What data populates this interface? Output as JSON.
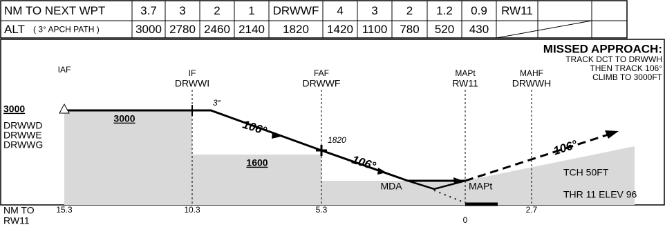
{
  "table": {
    "rows": [
      {
        "label": "NM TO NEXT WPT",
        "cells": [
          "3.7",
          "3",
          "2",
          "1",
          "DRWWF",
          "4",
          "3",
          "2",
          "1.2",
          "0.9",
          "RW11"
        ]
      },
      {
        "label": "ALT",
        "note": "( 3° APCH PATH )",
        "cells": [
          "3000",
          "2780",
          "2460",
          "2140",
          "1820",
          "1420",
          "1100",
          "780",
          "520",
          "430"
        ]
      }
    ]
  },
  "missed_approach": {
    "title": "MISSED APPROACH:",
    "lines": [
      "TRACK DCT TO DRWWH",
      "THEN TRACK 106°",
      "CLIMB TO 3000FT"
    ]
  },
  "fixes": [
    {
      "role": "IAF"
    },
    {
      "role": "IF",
      "name": "DRWWI"
    },
    {
      "role": "FAF",
      "name": "DRWWF"
    },
    {
      "role": "MAPt",
      "name": "RW11"
    },
    {
      "role": "MAHF",
      "name": "DRWWH"
    }
  ],
  "iaf_altitude": "3000",
  "iaf_fixes": [
    "DRWWD",
    "DRWWE",
    "DRWWG"
  ],
  "segment_altitudes": [
    "3000",
    "1600"
  ],
  "glide_angle": "3°",
  "tracks": [
    "106°",
    "106°",
    "106°"
  ],
  "faf_altitude": "1820",
  "mda": "MDA",
  "mapt": "MAPt",
  "tch": "TCH 50FT",
  "threshold": "THR 11 ELEV 96",
  "distance_label": [
    "NM TO",
    "RW11"
  ],
  "distances": [
    "15.3",
    "10.3",
    "5.3",
    "0",
    "2.7"
  ]
}
